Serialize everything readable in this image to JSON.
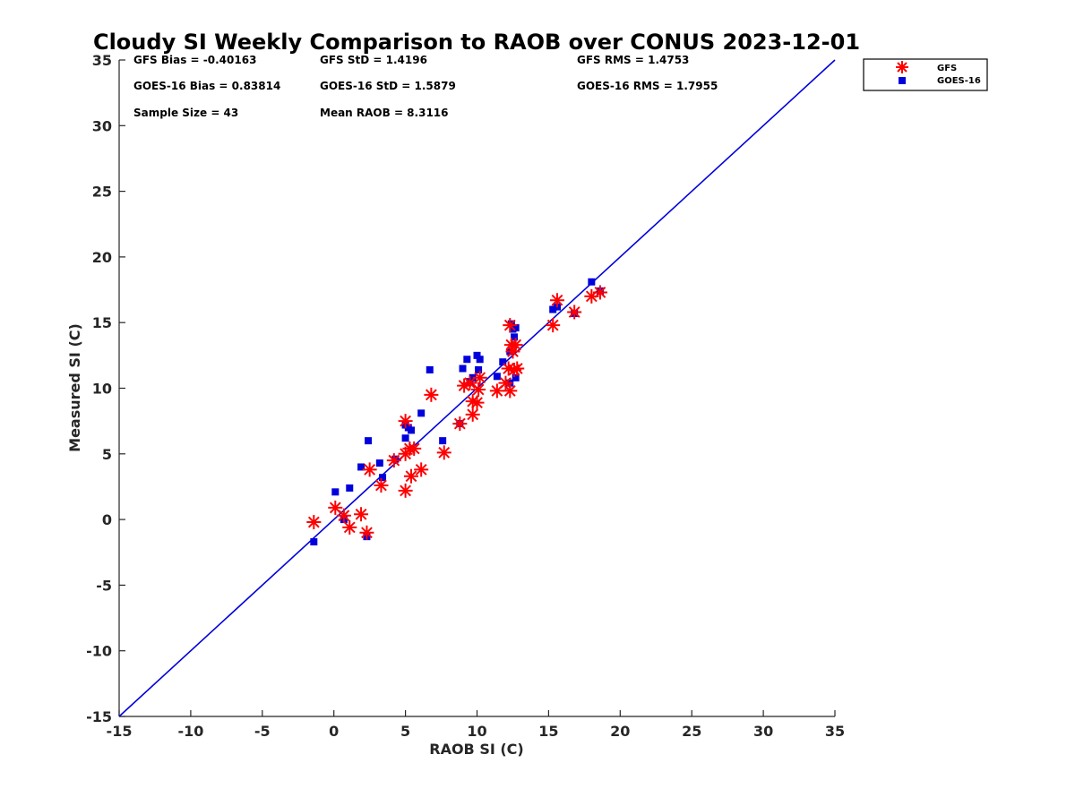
{
  "chart_data": {
    "type": "scatter",
    "title": "Cloudy SI Weekly Comparison to RAOB over CONUS 2023-12-01",
    "xlabel": "RAOB SI (C)",
    "ylabel": "Measured SI (C)",
    "xlim": [
      -15,
      35
    ],
    "ylim": [
      -15,
      35
    ],
    "xticks": [
      "-15",
      "-10",
      "-5",
      "0",
      "5",
      "10",
      "15",
      "20",
      "25",
      "30",
      "35"
    ],
    "yticks": [
      "-15",
      "-10",
      "-5",
      "0",
      "5",
      "10",
      "15",
      "20",
      "25",
      "30",
      "35"
    ],
    "grid": false,
    "legend_position": "top-right outside",
    "reference_line": {
      "type": "one-to-one",
      "color": "#0000dd"
    },
    "stats": [
      "GFS Bias = -0.40163",
      "GFS StD = 1.4196",
      "GFS RMS = 1.4753",
      "GOES-16 Bias = 0.83814",
      "GOES-16 StD = 1.5879",
      "GOES-16 RMS = 1.7955",
      "Sample Size = 43",
      "Mean RAOB = 8.3116"
    ],
    "series": [
      {
        "name": "GFS",
        "marker": "asterisk",
        "color": "#ff0000",
        "points": [
          [
            -1.4,
            -0.2
          ],
          [
            0.1,
            0.9
          ],
          [
            0.7,
            0.3
          ],
          [
            1.1,
            -0.6
          ],
          [
            1.9,
            0.4
          ],
          [
            2.3,
            -1.0
          ],
          [
            2.5,
            3.8
          ],
          [
            3.3,
            2.6
          ],
          [
            4.2,
            4.5
          ],
          [
            5.0,
            7.5
          ],
          [
            5.0,
            5.0
          ],
          [
            5.0,
            2.2
          ],
          [
            5.3,
            5.4
          ],
          [
            5.4,
            3.3
          ],
          [
            5.6,
            5.4
          ],
          [
            6.1,
            3.8
          ],
          [
            6.8,
            9.5
          ],
          [
            7.7,
            5.1
          ],
          [
            8.8,
            7.3
          ],
          [
            9.1,
            10.2
          ],
          [
            9.5,
            10.4
          ],
          [
            9.7,
            9.0
          ],
          [
            9.7,
            8.0
          ],
          [
            10.0,
            8.9
          ],
          [
            10.1,
            9.9
          ],
          [
            10.2,
            10.8
          ],
          [
            11.4,
            9.8
          ],
          [
            12.0,
            10.4
          ],
          [
            12.2,
            11.5
          ],
          [
            12.3,
            9.8
          ],
          [
            12.3,
            14.8
          ],
          [
            12.4,
            13.3
          ],
          [
            12.5,
            12.8
          ],
          [
            12.6,
            11.4
          ],
          [
            12.7,
            13.3
          ],
          [
            12.8,
            11.5
          ],
          [
            15.3,
            14.8
          ],
          [
            15.6,
            16.7
          ],
          [
            16.8,
            15.8
          ],
          [
            18.0,
            17.0
          ],
          [
            18.6,
            17.3
          ]
        ]
      },
      {
        "name": "GOES-16",
        "marker": "square",
        "color": "#0000dd",
        "points": [
          [
            -1.4,
            -1.7
          ],
          [
            0.1,
            2.1
          ],
          [
            0.7,
            0.0
          ],
          [
            1.1,
            2.4
          ],
          [
            1.9,
            4.0
          ],
          [
            2.3,
            -1.3
          ],
          [
            2.4,
            6.0
          ],
          [
            3.2,
            4.3
          ],
          [
            3.4,
            3.2
          ],
          [
            4.3,
            4.6
          ],
          [
            5.0,
            6.2
          ],
          [
            5.0,
            7.2
          ],
          [
            5.2,
            7.0
          ],
          [
            5.4,
            6.8
          ],
          [
            6.1,
            8.1
          ],
          [
            6.7,
            11.4
          ],
          [
            7.6,
            6.0
          ],
          [
            8.8,
            7.3
          ],
          [
            9.0,
            11.5
          ],
          [
            9.3,
            12.2
          ],
          [
            9.5,
            10.5
          ],
          [
            9.7,
            10.8
          ],
          [
            10.0,
            12.5
          ],
          [
            10.1,
            11.4
          ],
          [
            10.2,
            12.2
          ],
          [
            11.4,
            10.9
          ],
          [
            11.8,
            12.0
          ],
          [
            12.3,
            10.4
          ],
          [
            12.3,
            12.8
          ],
          [
            12.4,
            14.9
          ],
          [
            12.5,
            14.5
          ],
          [
            12.6,
            13.9
          ],
          [
            12.7,
            14.6
          ],
          [
            12.7,
            10.8
          ],
          [
            15.3,
            16.0
          ],
          [
            15.6,
            16.2
          ],
          [
            16.8,
            15.7
          ],
          [
            18.0,
            18.1
          ],
          [
            18.6,
            17.4
          ]
        ]
      }
    ]
  }
}
